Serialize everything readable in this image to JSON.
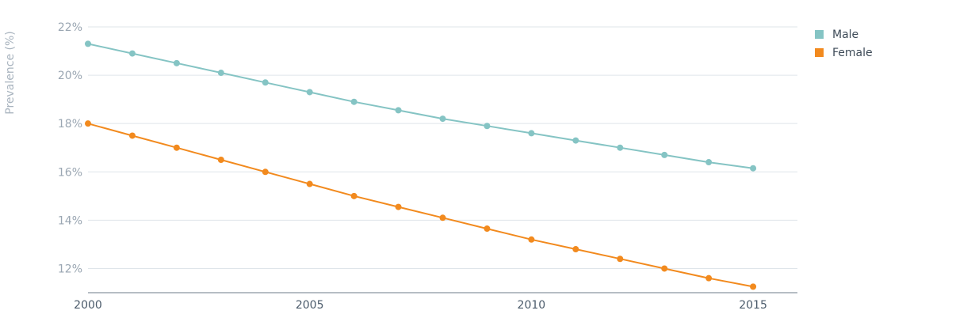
{
  "chart_data": {
    "type": "line",
    "ylabel": "Prevalence (%)",
    "xlabel": "",
    "title": "",
    "x": [
      2000,
      2001,
      2002,
      2003,
      2004,
      2005,
      2006,
      2007,
      2008,
      2009,
      2010,
      2011,
      2012,
      2013,
      2014,
      2015
    ],
    "xticks": [
      2000,
      2005,
      2010,
      2015
    ],
    "xtick_labels": [
      "2000",
      "2005",
      "2010",
      "2015"
    ],
    "yticks": [
      12,
      14,
      16,
      18,
      20,
      22
    ],
    "ytick_labels": [
      "12%",
      "14%",
      "16%",
      "18%",
      "20%",
      "22%"
    ],
    "xlim": [
      2000,
      2016
    ],
    "ylim": [
      11,
      22
    ],
    "grid": true,
    "legend_position": "top-right",
    "series": [
      {
        "name": "Male",
        "color": "#85c4c4",
        "values": [
          21.3,
          20.9,
          20.5,
          20.1,
          19.7,
          19.3,
          18.9,
          18.55,
          18.2,
          17.9,
          17.6,
          17.3,
          17.0,
          16.7,
          16.4,
          16.15
        ]
      },
      {
        "name": "Female",
        "color": "#f28a1e",
        "values": [
          18.0,
          17.5,
          17.0,
          16.5,
          16.0,
          15.5,
          15.0,
          14.55,
          14.1,
          13.65,
          13.2,
          12.8,
          12.4,
          12.0,
          11.6,
          11.25
        ]
      }
    ]
  }
}
